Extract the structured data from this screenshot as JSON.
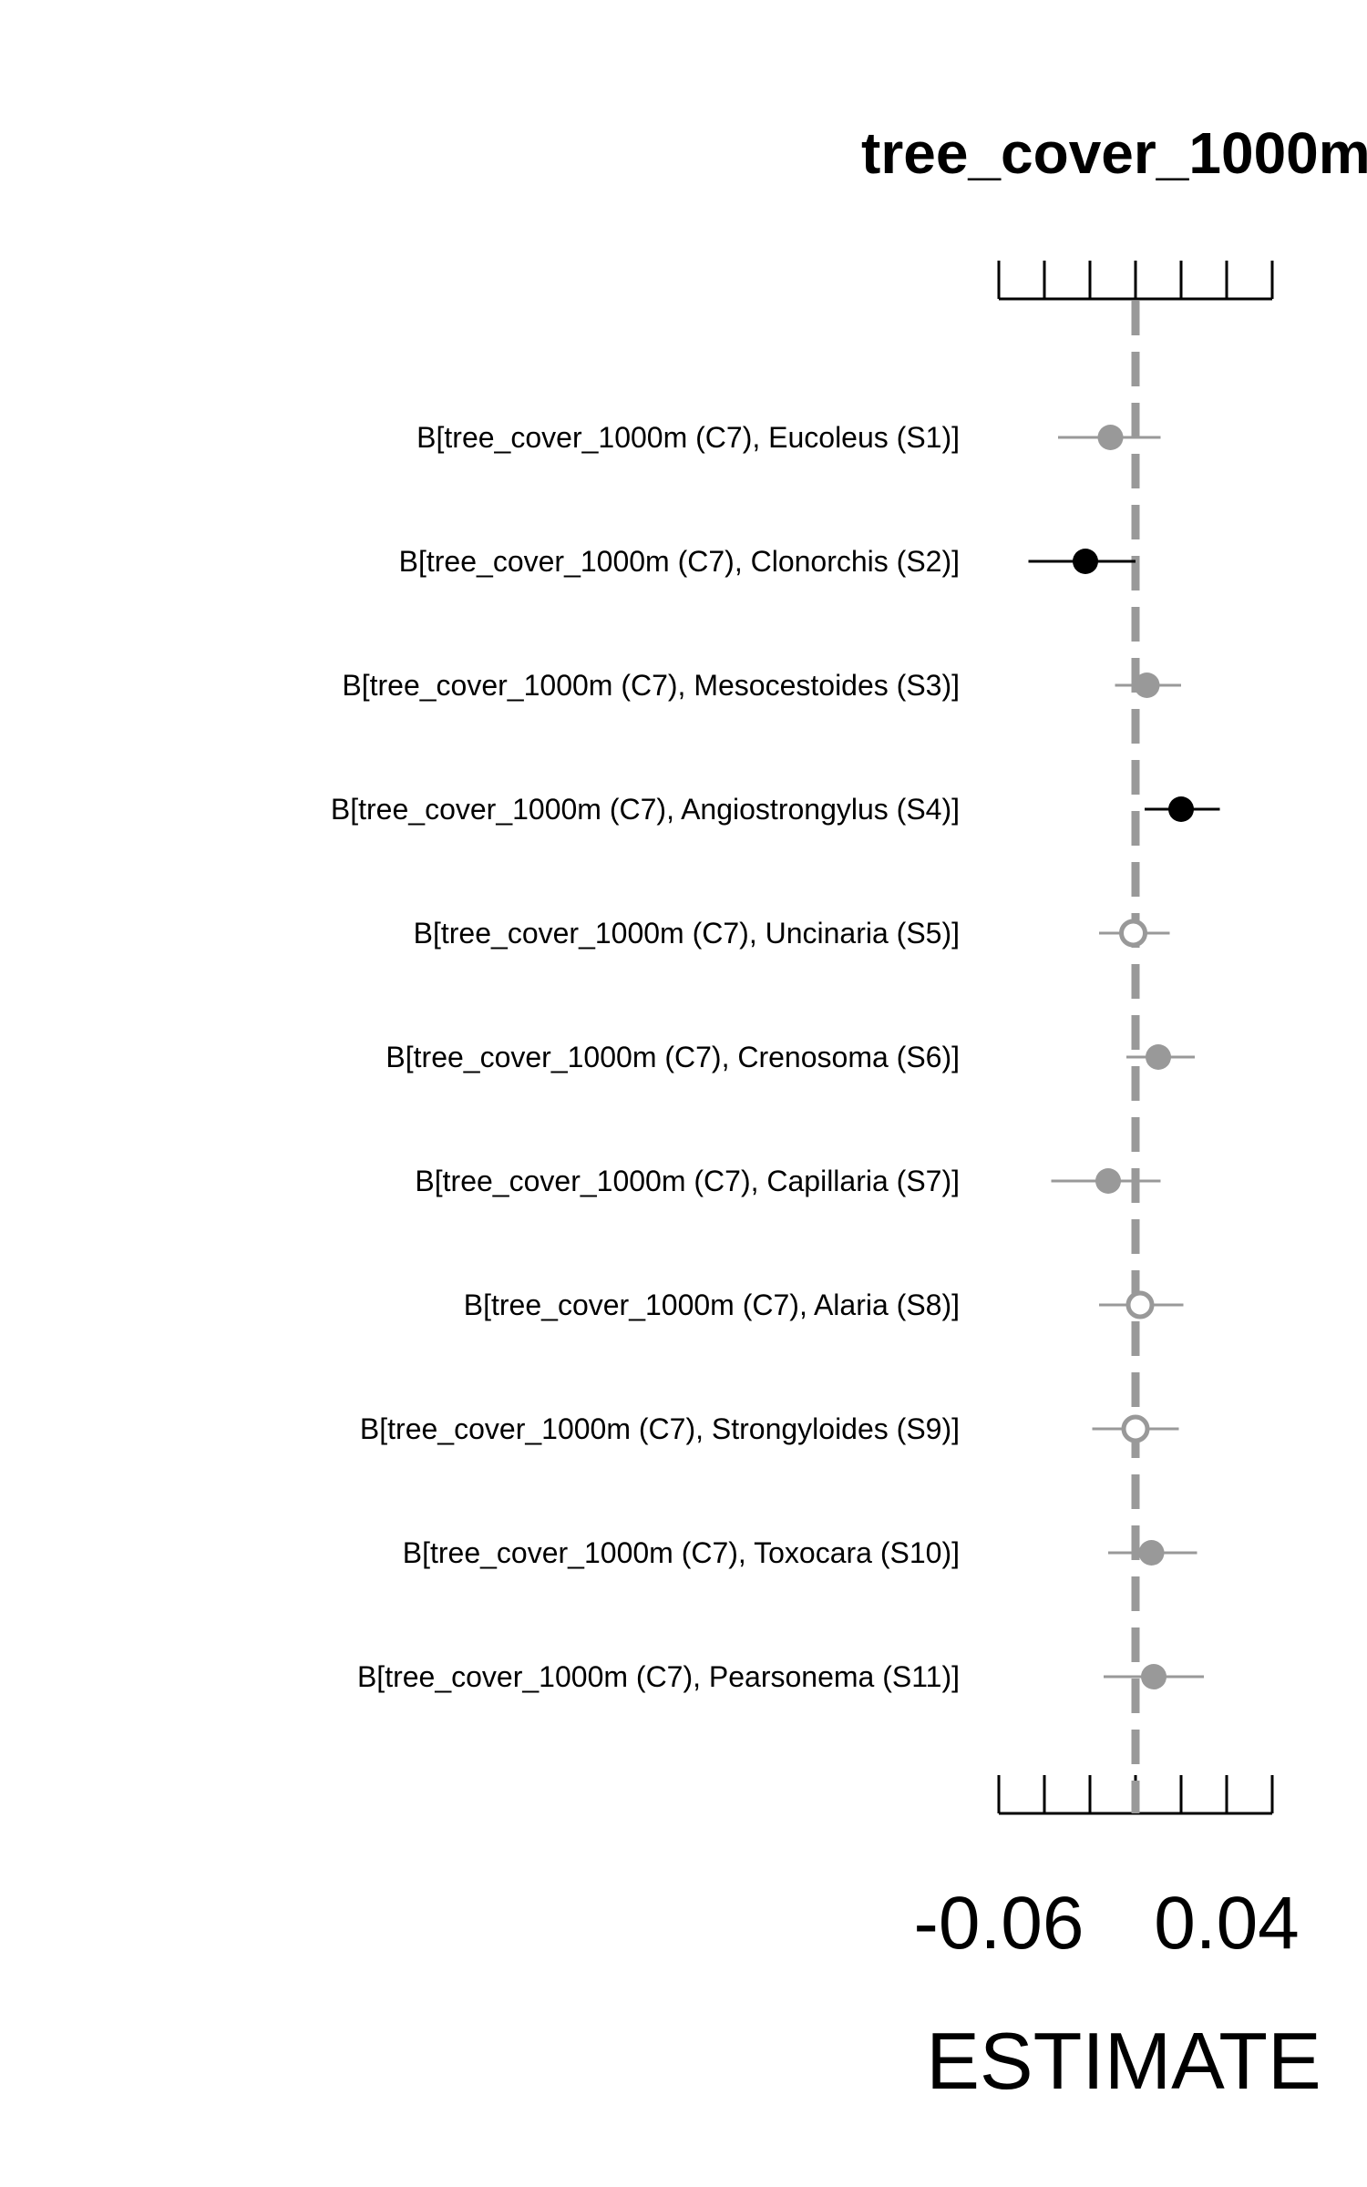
{
  "chart_data": {
    "type": "scatter",
    "variant": "coefficient-interval-plot",
    "title": "tree_cover_1000m",
    "xlabel": "ESTIMATE",
    "xlim": [
      -0.06,
      0.06
    ],
    "x_tick_values": [
      -0.06,
      -0.04,
      -0.02,
      0.0,
      0.02,
      0.04,
      0.06
    ],
    "x_tick_labels": [
      {
        "value": -0.06,
        "label": "-0.06"
      },
      {
        "value": 0.04,
        "label": "0.04"
      }
    ],
    "reference_line": {
      "x": 0,
      "style": "dashed"
    },
    "colors": {
      "significant": "#000000",
      "weak": "#999999",
      "null": "#999999",
      "axis": "#000000"
    },
    "series": [
      {
        "label": "B[tree_cover_1000m (C7), Eucoleus (S1)]",
        "estimate": -0.011,
        "lower": -0.034,
        "upper": 0.011,
        "style": "weak"
      },
      {
        "label": "B[tree_cover_1000m (C7), Clonorchis (S2)]",
        "estimate": -0.022,
        "lower": -0.047,
        "upper": 0.0,
        "style": "significant"
      },
      {
        "label": "B[tree_cover_1000m (C7), Mesocestoides (S3)]",
        "estimate": 0.005,
        "lower": -0.009,
        "upper": 0.02,
        "style": "weak"
      },
      {
        "label": "B[tree_cover_1000m (C7), Angiostrongylus (S4)]",
        "estimate": 0.02,
        "lower": 0.004,
        "upper": 0.037,
        "style": "significant"
      },
      {
        "label": "B[tree_cover_1000m (C7), Uncinaria (S5)]",
        "estimate": -0.001,
        "lower": -0.016,
        "upper": 0.015,
        "style": "null"
      },
      {
        "label": "B[tree_cover_1000m (C7), Crenosoma (S6)]",
        "estimate": 0.01,
        "lower": -0.004,
        "upper": 0.026,
        "style": "weak"
      },
      {
        "label": "B[tree_cover_1000m (C7), Capillaria (S7)]",
        "estimate": -0.012,
        "lower": -0.037,
        "upper": 0.011,
        "style": "weak"
      },
      {
        "label": "B[tree_cover_1000m (C7), Alaria (S8)]",
        "estimate": 0.002,
        "lower": -0.016,
        "upper": 0.021,
        "style": "null"
      },
      {
        "label": "B[tree_cover_1000m (C7), Strongyloides (S9)]",
        "estimate": 0.0,
        "lower": -0.019,
        "upper": 0.019,
        "style": "null"
      },
      {
        "label": "B[tree_cover_1000m (C7), Toxocara (S10)]",
        "estimate": 0.007,
        "lower": -0.012,
        "upper": 0.027,
        "style": "weak"
      },
      {
        "label": "B[tree_cover_1000m (C7), Pearsonema (S11)]",
        "estimate": 0.008,
        "lower": -0.014,
        "upper": 0.03,
        "style": "weak"
      }
    ]
  }
}
